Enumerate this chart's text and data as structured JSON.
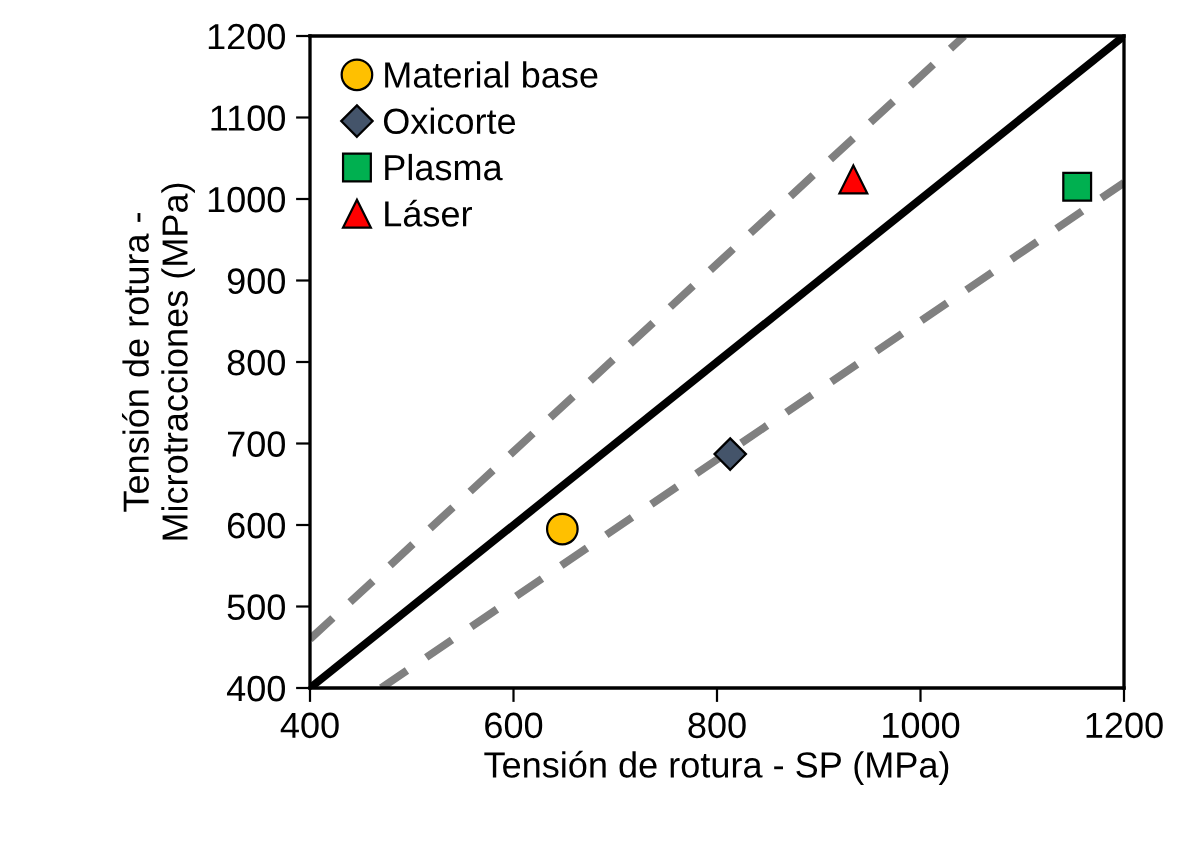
{
  "chart_data": {
    "type": "scatter",
    "xlabel": "Tensión de rotura - SP (MPa)",
    "ylabel": "Tensión de rotura -\nMicrotracciones (MPa)",
    "xlim": [
      400,
      1200
    ],
    "xticks": [
      400,
      600,
      800,
      1000,
      1200
    ],
    "ylim": [
      400,
      1200
    ],
    "yticks": [
      400,
      500,
      600,
      700,
      800,
      900,
      1000,
      1100,
      1200
    ],
    "grid": false,
    "legend": "top left",
    "series": [
      {
        "type": "line",
        "color": "#000000",
        "line_style": "solid",
        "marker": "none",
        "x": [
          400,
          1200
        ],
        "values": [
          400,
          1200
        ]
      },
      {
        "type": "line",
        "color": "#808080",
        "line_style": "dashed",
        "marker": "none",
        "x": [
          400,
          1043
        ],
        "values": [
          460,
          1200
        ]
      },
      {
        "type": "line",
        "color": "#808080",
        "line_style": "dashed",
        "marker": "none",
        "x": [
          470,
          1200
        ],
        "values": [
          400,
          1020
        ]
      },
      {
        "name": "Material base",
        "color": "#ffc000",
        "marker": "circle",
        "x": [
          648
        ],
        "values": [
          595
        ]
      },
      {
        "name": "Oxicorte",
        "color": "#44546a",
        "marker": "diamond",
        "x": [
          813
        ],
        "values": [
          687
        ]
      },
      {
        "name": "Plasma",
        "color": "#00b050",
        "marker": "square",
        "x": [
          1154
        ],
        "values": [
          1015
        ]
      },
      {
        "name": "Láser",
        "color": "#ff0000",
        "marker": "triangle",
        "x": [
          934
        ],
        "values": [
          1024
        ]
      }
    ]
  }
}
